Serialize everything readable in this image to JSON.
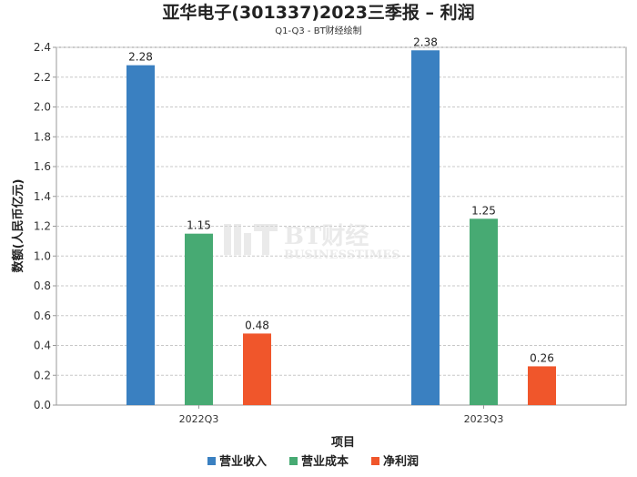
{
  "chart_data": {
    "type": "bar",
    "title": "亚华电子(301337)2023三季报 – 利润",
    "subtitle": "Q1-Q3 - BT财经绘制",
    "xlabel": "项目",
    "ylabel": "数额(人民币亿元)",
    "categories": [
      "2022Q3",
      "2023Q3"
    ],
    "series": [
      {
        "name": "营业收入",
        "color": "#3a80c1",
        "values": [
          2.28,
          2.38
        ]
      },
      {
        "name": "营业成本",
        "color": "#47aa73",
        "values": [
          1.15,
          1.25
        ]
      },
      {
        "name": "净利润",
        "color": "#f0562b",
        "values": [
          0.48,
          0.26
        ]
      }
    ],
    "value_labels": [
      [
        "2.28",
        "2.38"
      ],
      [
        "1.15",
        "1.25"
      ],
      [
        "0.48",
        "0.26"
      ]
    ],
    "ylim": [
      0,
      2.4
    ],
    "yticks": [
      "0.0",
      "0.2",
      "0.4",
      "0.6",
      "0.8",
      "1.0",
      "1.2",
      "1.4",
      "1.6",
      "1.8",
      "2.0",
      "2.2",
      "2.4"
    ],
    "grid": true,
    "legend_position": "bottom"
  },
  "watermark": {
    "main": "BT财经",
    "sub": "BUSINESSTIMES"
  }
}
